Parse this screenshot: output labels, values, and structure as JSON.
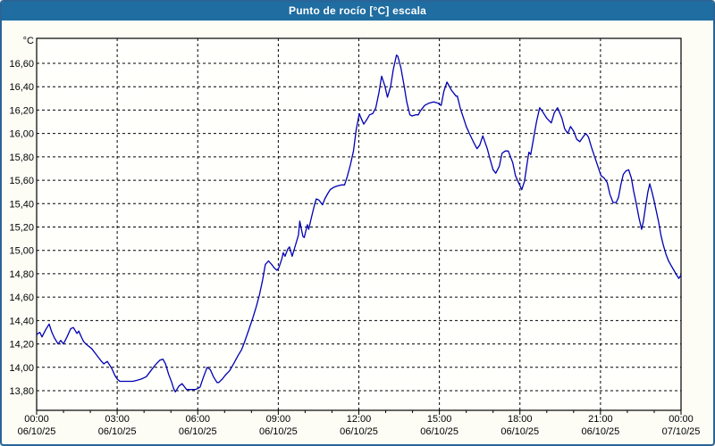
{
  "window": {
    "title": "Punto de rocío [°C] escala"
  },
  "colors": {
    "titlebar_bg": "#1f6da1",
    "frame_border": "#2a6496",
    "content_bg": "#fdfdf6",
    "plot_bg": "#fffffc",
    "grid": "#000000",
    "series_line": "#0000b3",
    "title_text": "#ffffff",
    "axis_text": "#000000"
  },
  "chart_data": {
    "type": "line",
    "title": "Punto de rocío [°C] escala",
    "grid": "dashed",
    "legend": "none",
    "y_axis": {
      "unit_label": "°C",
      "min": 13.8,
      "max": 16.6,
      "tick_step": 0.2,
      "tick_labels": [
        "16,60",
        "16,40",
        "16,20",
        "16,00",
        "15,80",
        "15,60",
        "15,40",
        "15,20",
        "15,00",
        "14,80",
        "14,60",
        "14,40",
        "14,20",
        "14,00",
        "13,80"
      ]
    },
    "x_axis": {
      "range_hours": 24,
      "major_tick_hours": 3,
      "minor_tick_hours": 1,
      "tick_labels": [
        {
          "time": "00:00",
          "date": "06/10/25"
        },
        {
          "time": "03:00",
          "date": "06/10/25"
        },
        {
          "time": "06:00",
          "date": "06/10/25"
        },
        {
          "time": "09:00",
          "date": "06/10/25"
        },
        {
          "time": "12:00",
          "date": "06/10/25"
        },
        {
          "time": "15:00",
          "date": "06/10/25"
        },
        {
          "time": "18:00",
          "date": "06/10/25"
        },
        {
          "time": "21:00",
          "date": "06/10/25"
        },
        {
          "time": "00:00",
          "date": "07/10/25"
        }
      ]
    },
    "series": [
      {
        "name": "Punto de rocío",
        "color": "#0000b3",
        "points_format": "[minutes_from_00:00, temp_C]",
        "points": [
          [
            0,
            14.28
          ],
          [
            7,
            14.3
          ],
          [
            12,
            14.26
          ],
          [
            20,
            14.32
          ],
          [
            28,
            14.37
          ],
          [
            34,
            14.3
          ],
          [
            40,
            14.25
          ],
          [
            48,
            14.2
          ],
          [
            54,
            14.23
          ],
          [
            60,
            14.2
          ],
          [
            68,
            14.26
          ],
          [
            76,
            14.33
          ],
          [
            82,
            14.34
          ],
          [
            90,
            14.29
          ],
          [
            94,
            14.31
          ],
          [
            101,
            14.25
          ],
          [
            105,
            14.22
          ],
          [
            113,
            14.19
          ],
          [
            123,
            14.16
          ],
          [
            133,
            14.11
          ],
          [
            143,
            14.06
          ],
          [
            150,
            14.03
          ],
          [
            158,
            14.05
          ],
          [
            168,
            13.99
          ],
          [
            175,
            13.93
          ],
          [
            180,
            13.9
          ],
          [
            186,
            13.88
          ],
          [
            195,
            13.88
          ],
          [
            205,
            13.88
          ],
          [
            215,
            13.88
          ],
          [
            225,
            13.89
          ],
          [
            234,
            13.9
          ],
          [
            245,
            13.92
          ],
          [
            255,
            13.97
          ],
          [
            265,
            14.02
          ],
          [
            275,
            14.06
          ],
          [
            282,
            14.07
          ],
          [
            288,
            14.03
          ],
          [
            295,
            13.94
          ],
          [
            302,
            13.87
          ],
          [
            306,
            13.82
          ],
          [
            310,
            13.79
          ],
          [
            318,
            13.84
          ],
          [
            325,
            13.86
          ],
          [
            335,
            13.81
          ],
          [
            345,
            13.81
          ],
          [
            355,
            13.81
          ],
          [
            360,
            13.82
          ],
          [
            365,
            13.83
          ],
          [
            373,
            13.92
          ],
          [
            381,
            14.0
          ],
          [
            388,
            13.98
          ],
          [
            395,
            13.92
          ],
          [
            403,
            13.87
          ],
          [
            407,
            13.87
          ],
          [
            415,
            13.9
          ],
          [
            421,
            13.93
          ],
          [
            431,
            13.97
          ],
          [
            440,
            14.03
          ],
          [
            450,
            14.1
          ],
          [
            458,
            14.15
          ],
          [
            465,
            14.22
          ],
          [
            475,
            14.33
          ],
          [
            483,
            14.42
          ],
          [
            491,
            14.52
          ],
          [
            498,
            14.62
          ],
          [
            505,
            14.75
          ],
          [
            511,
            14.88
          ],
          [
            518,
            14.91
          ],
          [
            525,
            14.88
          ],
          [
            531,
            14.85
          ],
          [
            537,
            14.83
          ],
          [
            541,
            14.85
          ],
          [
            548,
            14.93
          ],
          [
            551,
            14.98
          ],
          [
            555,
            14.95
          ],
          [
            561,
            15.01
          ],
          [
            565,
            15.03
          ],
          [
            571,
            14.95
          ],
          [
            578,
            15.04
          ],
          [
            585,
            15.13
          ],
          [
            588,
            15.25
          ],
          [
            595,
            15.12
          ],
          [
            598,
            15.11
          ],
          [
            605,
            15.22
          ],
          [
            608,
            15.18
          ],
          [
            614,
            15.28
          ],
          [
            621,
            15.39
          ],
          [
            625,
            15.44
          ],
          [
            631,
            15.43
          ],
          [
            639,
            15.39
          ],
          [
            644,
            15.44
          ],
          [
            651,
            15.49
          ],
          [
            656,
            15.52
          ],
          [
            664,
            15.54
          ],
          [
            671,
            15.55
          ],
          [
            681,
            15.56
          ],
          [
            688,
            15.56
          ],
          [
            694,
            15.63
          ],
          [
            701,
            15.73
          ],
          [
            708,
            15.85
          ],
          [
            714,
            16.03
          ],
          [
            721,
            16.17
          ],
          [
            724,
            16.14
          ],
          [
            731,
            16.08
          ],
          [
            738,
            16.12
          ],
          [
            744,
            16.16
          ],
          [
            751,
            16.17
          ],
          [
            758,
            16.22
          ],
          [
            765,
            16.35
          ],
          [
            771,
            16.49
          ],
          [
            778,
            16.41
          ],
          [
            784,
            16.31
          ],
          [
            791,
            16.4
          ],
          [
            797,
            16.55
          ],
          [
            804,
            16.67
          ],
          [
            807,
            16.66
          ],
          [
            814,
            16.56
          ],
          [
            821,
            16.41
          ],
          [
            827,
            16.27
          ],
          [
            834,
            16.16
          ],
          [
            839,
            16.15
          ],
          [
            847,
            16.16
          ],
          [
            853,
            16.16
          ],
          [
            857,
            16.19
          ],
          [
            867,
            16.24
          ],
          [
            877,
            16.26
          ],
          [
            887,
            16.27
          ],
          [
            897,
            16.26
          ],
          [
            900,
            16.25
          ],
          [
            904,
            16.24
          ],
          [
            910,
            16.36
          ],
          [
            917,
            16.44
          ],
          [
            927,
            16.37
          ],
          [
            937,
            16.32
          ],
          [
            940,
            16.32
          ],
          [
            947,
            16.21
          ],
          [
            954,
            16.13
          ],
          [
            960,
            16.06
          ],
          [
            967,
            16.0
          ],
          [
            977,
            15.92
          ],
          [
            984,
            15.87
          ],
          [
            990,
            15.9
          ],
          [
            997,
            15.98
          ],
          [
            1007,
            15.87
          ],
          [
            1014,
            15.77
          ],
          [
            1020,
            15.69
          ],
          [
            1026,
            15.66
          ],
          [
            1034,
            15.72
          ],
          [
            1040,
            15.83
          ],
          [
            1047,
            15.85
          ],
          [
            1054,
            15.85
          ],
          [
            1064,
            15.75
          ],
          [
            1070,
            15.64
          ],
          [
            1077,
            15.58
          ],
          [
            1084,
            15.52
          ],
          [
            1090,
            15.59
          ],
          [
            1097,
            15.77
          ],
          [
            1100,
            15.84
          ],
          [
            1104,
            15.82
          ],
          [
            1110,
            15.95
          ],
          [
            1117,
            16.1
          ],
          [
            1124,
            16.22
          ],
          [
            1130,
            16.19
          ],
          [
            1140,
            16.13
          ],
          [
            1150,
            16.09
          ],
          [
            1157,
            16.18
          ],
          [
            1164,
            16.22
          ],
          [
            1174,
            16.13
          ],
          [
            1180,
            16.04
          ],
          [
            1187,
            16.0
          ],
          [
            1193,
            16.06
          ],
          [
            1200,
            16.02
          ],
          [
            1207,
            15.95
          ],
          [
            1214,
            15.93
          ],
          [
            1221,
            15.97
          ],
          [
            1227,
            16.0
          ],
          [
            1233,
            15.97
          ],
          [
            1240,
            15.88
          ],
          [
            1247,
            15.8
          ],
          [
            1254,
            15.72
          ],
          [
            1261,
            15.64
          ],
          [
            1268,
            15.62
          ],
          [
            1275,
            15.58
          ],
          [
            1281,
            15.48
          ],
          [
            1288,
            15.41
          ],
          [
            1295,
            15.41
          ],
          [
            1300,
            15.45
          ],
          [
            1306,
            15.57
          ],
          [
            1311,
            15.65
          ],
          [
            1317,
            15.68
          ],
          [
            1323,
            15.69
          ],
          [
            1329,
            15.62
          ],
          [
            1334,
            15.51
          ],
          [
            1340,
            15.4
          ],
          [
            1346,
            15.28
          ],
          [
            1352,
            15.18
          ],
          [
            1356,
            15.25
          ],
          [
            1361,
            15.38
          ],
          [
            1366,
            15.5
          ],
          [
            1370,
            15.57
          ],
          [
            1375,
            15.5
          ],
          [
            1380,
            15.42
          ],
          [
            1385,
            15.33
          ],
          [
            1390,
            15.24
          ],
          [
            1395,
            15.13
          ],
          [
            1400,
            15.05
          ],
          [
            1406,
            14.97
          ],
          [
            1412,
            14.91
          ],
          [
            1418,
            14.87
          ],
          [
            1424,
            14.83
          ],
          [
            1430,
            14.79
          ],
          [
            1435,
            14.76
          ],
          [
            1440,
            14.79
          ]
        ]
      }
    ]
  }
}
